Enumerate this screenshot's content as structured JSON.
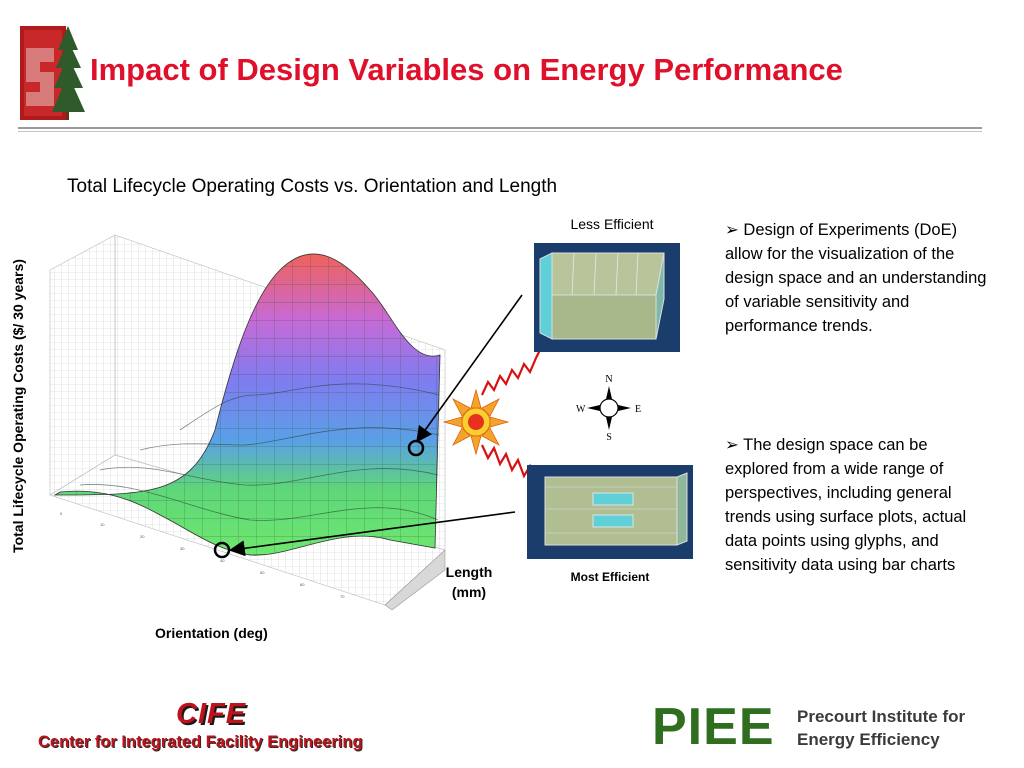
{
  "slide": {
    "title": "Impact of Design Variables on Energy Performance",
    "subtitle": "Total Lifecycle Operating Costs vs. Orientation and Length",
    "title_color": "#e0102b"
  },
  "plot": {
    "y_axis_label": "Total Lifecycle Operating Costs  ($/ 30 years)",
    "x_axis_label": "Orientation (deg)",
    "length_label_line1": "Length",
    "length_label_line2": "(mm)"
  },
  "images": {
    "less_efficient_label": "Less Efficient",
    "most_efficient_label": "Most Efficient"
  },
  "compass": {
    "n": "N",
    "s": "S",
    "e": "E",
    "w": "W"
  },
  "bullets": [
    "Design of Experiments (DoE) allow for  the visualization of the design space and an understanding of variable sensitivity and performance trends.",
    "The design space can be explored from a wide range of perspectives, including general trends using surface plots, actual data points using glyphs, and sensitivity data using bar charts"
  ],
  "bullet_marker": "➢",
  "footer": {
    "cife_name": "CIFE",
    "cife_full": "Center for Integrated Facility Engineering",
    "piee_name": "PIEE",
    "piee_line1": "Precourt Institute for",
    "piee_line2": "Energy Efficiency",
    "cife_color": "#c0121a",
    "piee_color": "#2e6e1e"
  },
  "icons": [
    "stanford-logo-icon",
    "sun-icon",
    "compass-icon",
    "wave-icon",
    "arrow-icon"
  ]
}
